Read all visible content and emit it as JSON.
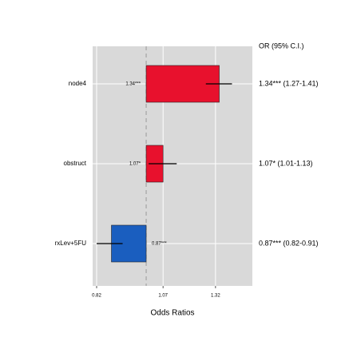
{
  "chart_data": {
    "type": "bar",
    "orientation": "horizontal",
    "xscale": "log",
    "categories": [
      "node4",
      "obstruct",
      "rxLev+5FU"
    ],
    "values": [
      1.34,
      1.07,
      0.87
    ],
    "value_labels": [
      "1.34***",
      "1.07*",
      "0.87***"
    ],
    "ci_low": [
      1.27,
      1.01,
      0.82
    ],
    "ci_high": [
      1.41,
      1.13,
      0.91
    ],
    "colors": [
      "#e8112d",
      "#e8112d",
      "#1a5ebf"
    ],
    "reference": 1,
    "xlim": [
      0.807,
      1.53
    ],
    "xticks": [
      0.82,
      1.07,
      1.32
    ],
    "xlabel": "Odds Ratios",
    "table_header": "OR (95% C.I.)",
    "table_labels": [
      "1.34*** (1.27-1.41)",
      "1.07* (1.01-1.13)",
      "0.87*** (0.82-0.91)"
    ],
    "grid": true
  }
}
